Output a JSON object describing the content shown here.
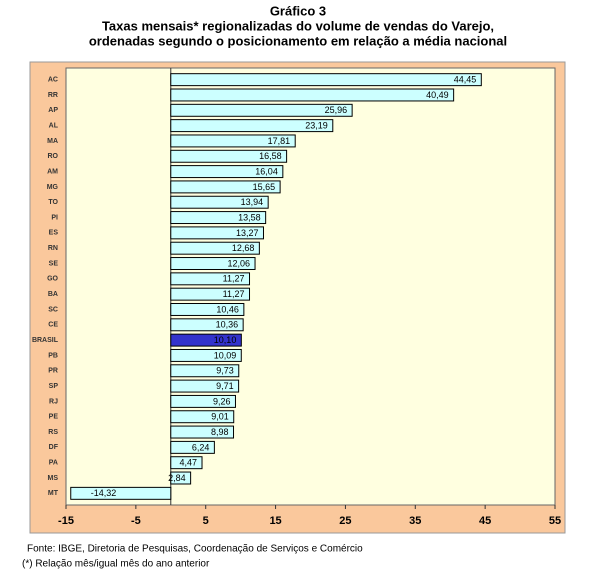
{
  "chart_data": {
    "type": "hbar",
    "title": "Gráfico 3",
    "subtitle": [
      "Taxas mensais* regionalizadas do volume de vendas do Varejo,",
      "ordenadas segundo o posicionamento em relação a média nacional"
    ],
    "categories": [
      "AC",
      "RR",
      "AP",
      "AL",
      "MA",
      "RO",
      "AM",
      "MG",
      "TO",
      "PI",
      "ES",
      "RN",
      "SE",
      "GO",
      "BA",
      "SC",
      "CE",
      "BRASIL",
      "PB",
      "PR",
      "SP",
      "RJ",
      "PE",
      "RS",
      "DF",
      "PA",
      "MS",
      "MT"
    ],
    "values": [
      44.45,
      40.49,
      25.96,
      23.19,
      17.81,
      16.58,
      16.04,
      15.65,
      13.94,
      13.58,
      13.27,
      12.68,
      12.06,
      11.27,
      11.27,
      10.46,
      10.36,
      10.1,
      10.09,
      9.73,
      9.71,
      9.26,
      9.01,
      8.98,
      6.24,
      4.47,
      2.84,
      -14.32
    ],
    "value_labels": [
      "44,45",
      "40,49",
      "25,96",
      "23,19",
      "17,81",
      "16,58",
      "16,04",
      "15,65",
      "13,94",
      "13,58",
      "13,27",
      "12,68",
      "12,06",
      "11,27",
      "11,27",
      "10,46",
      "10,36",
      "10,10",
      "10,09",
      "9,73",
      "9,71",
      "9,26",
      "9,01",
      "8,98",
      "6,24",
      "4,47",
      "2,84",
      "-14,32"
    ],
    "colors": [
      "#ccffff",
      "#ccffff",
      "#ccffff",
      "#ccffff",
      "#ccffff",
      "#ccffff",
      "#ccffff",
      "#ccffff",
      "#ccffff",
      "#ccffff",
      "#ccffff",
      "#ccffff",
      "#ccffff",
      "#ccffff",
      "#ccffff",
      "#ccffff",
      "#ccffff",
      "#3333cc",
      "#ccffff",
      "#ccffff",
      "#ccffff",
      "#ccffff",
      "#ccffff",
      "#ccffff",
      "#ccffff",
      "#ccffff",
      "#ccffff",
      "#ccffff"
    ],
    "xlim": [
      -15,
      55
    ],
    "xticks": [
      -15,
      -5,
      5,
      15,
      25,
      35,
      45,
      55
    ],
    "notes": [
      "Fonte: IBGE, Diretoria de Pesquisas, Coordenação de Serviços e Comércio",
      "(*) Relação mês/igual mês do ano anterior"
    ]
  }
}
